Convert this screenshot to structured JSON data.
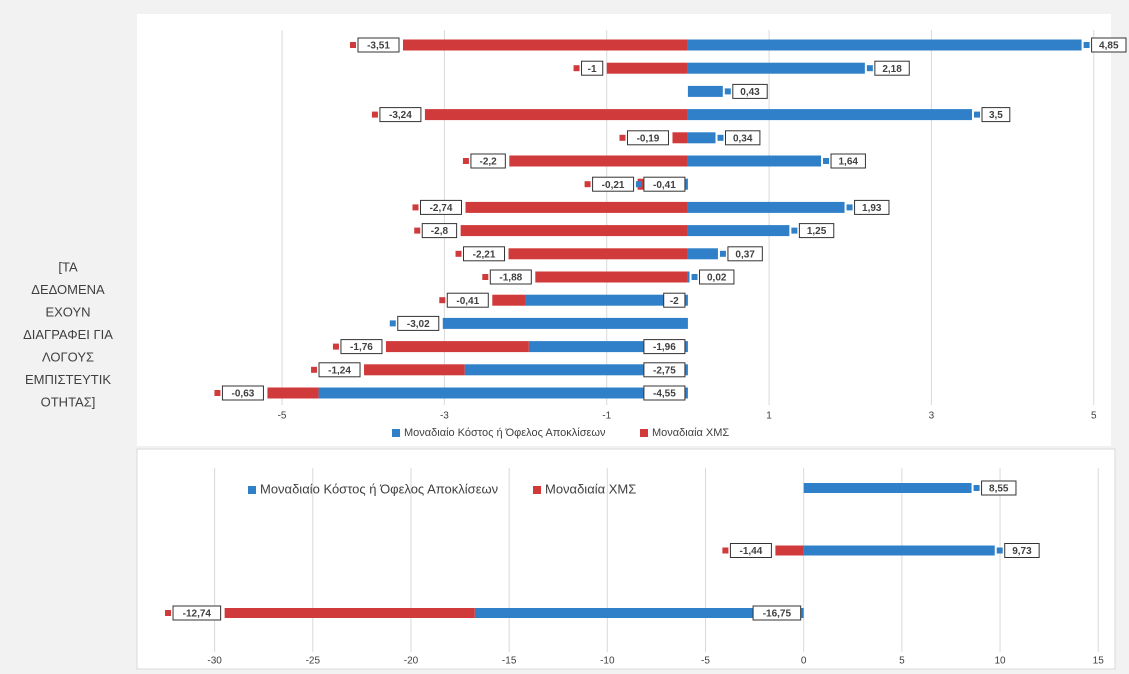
{
  "side_note": [
    "[ΤΑ",
    "ΔΕΔΟΜΕΝΑ",
    "ΕΧΟΥΝ",
    "ΔΙΑΓΡΑΦΕΙ ΓΙΑ",
    "ΛΟΓΟΥΣ",
    "ΕΜΠΙΣΤΕΥΤΙΚ",
    "ΟΤΗΤΑΣ]"
  ],
  "chart_data": [
    {
      "type": "bar",
      "orientation": "horizontal",
      "stacked": true,
      "grid": true,
      "legend": "bottom",
      "categories": [
        null,
        null,
        null,
        null,
        null,
        null,
        null,
        null,
        null,
        null,
        null,
        null,
        null,
        null,
        null,
        null
      ],
      "series": [
        {
          "name": "Μοναδιαίο Κόστος ή Όφελος Αποκλίσεων",
          "color": "#2f80c9",
          "values": [
            4.85,
            2.18,
            0.43,
            3.5,
            0.34,
            1.64,
            -0.41,
            1.93,
            1.25,
            0.37,
            0.02,
            -2,
            -3.02,
            -1.96,
            -2.75,
            -4.55
          ],
          "value_labels": [
            "4,85",
            "2,18",
            "0,43",
            "3,5",
            "0,34",
            "1,64",
            "-0,41",
            "1,93",
            "1,25",
            "0,37",
            "0,02",
            "-2",
            "-3,02",
            "-1,96",
            "-2,75",
            "-4,55"
          ]
        },
        {
          "name": "Μοναδιαία ΧΜΣ",
          "color": "#d13a3a",
          "values": [
            -3.51,
            -1,
            null,
            -3.24,
            -0.19,
            -2.2,
            -0.21,
            -2.74,
            -2.8,
            -2.21,
            -1.88,
            -0.41,
            null,
            -1.76,
            -1.24,
            -0.63
          ],
          "value_labels": [
            "-3,51",
            "-1",
            null,
            "-3,24",
            "-0,19",
            "-2,2",
            "-0,21",
            "-2,74",
            "-2,8",
            "-2,21",
            "-1,88",
            "-0,41",
            null,
            "-1,76",
            "-1,24",
            "-0,63"
          ]
        }
      ],
      "xlim": [
        -6.75,
        5.2
      ],
      "xticks": [
        -5,
        -3,
        -1,
        1,
        3,
        5
      ]
    },
    {
      "type": "bar",
      "orientation": "horizontal",
      "stacked": true,
      "grid": true,
      "legend": "top-left",
      "categories": [
        null,
        null,
        null
      ],
      "series": [
        {
          "name": "Μοναδιαίο Κόστος ή Όφελος Αποκλίσεων",
          "color": "#2f80c9",
          "values": [
            8.55,
            9.73,
            -16.75
          ],
          "value_labels": [
            "8,55",
            "9,73",
            "-16,75"
          ]
        },
        {
          "name": "Μοναδιαία ΧΜΣ",
          "color": "#d13a3a",
          "values": [
            null,
            -1.44,
            -12.74
          ],
          "value_labels": [
            null,
            "-1,44",
            "-12,74"
          ]
        }
      ],
      "xlim": [
        -33.8,
        15.6
      ],
      "xticks": [
        -30,
        -25,
        -20,
        -15,
        -10,
        -5,
        0,
        5,
        10,
        15
      ]
    }
  ]
}
